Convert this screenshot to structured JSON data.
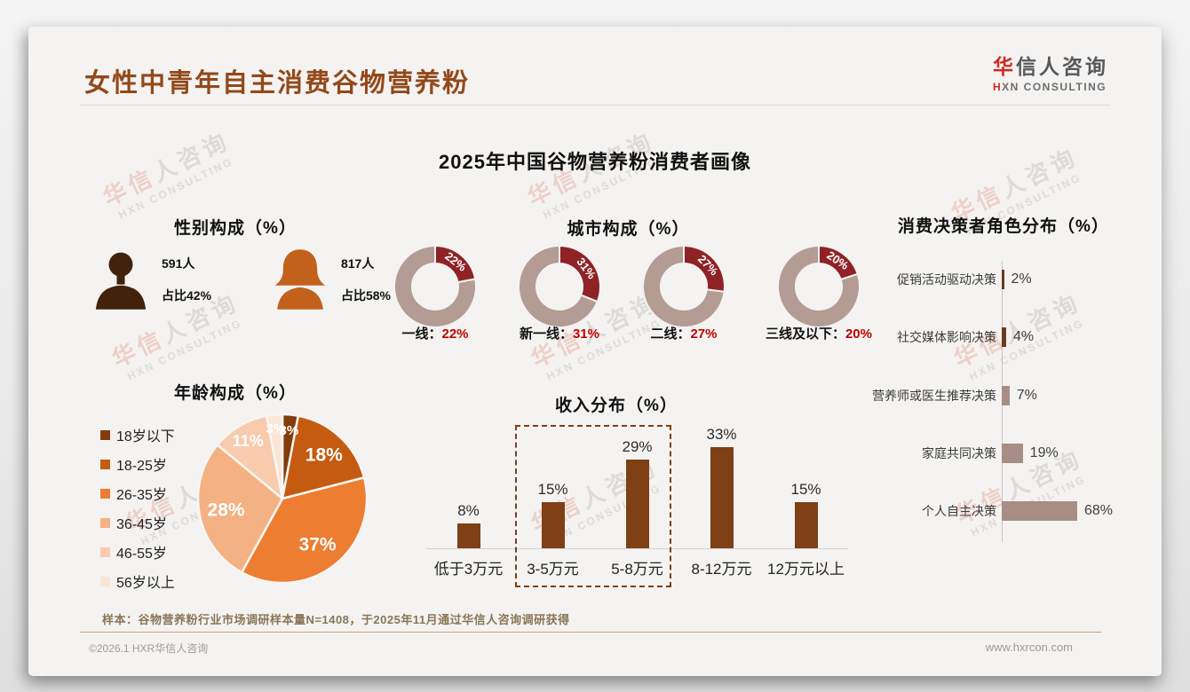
{
  "page": {
    "title": "女性中青年自主消费谷物营养粉",
    "subtitle": "2025年中国谷物营养粉消费者画像",
    "note": "样本：谷物营养粉行业市场调研样本量N=1408，于2025年11月通过华信人咨询调研获得",
    "footer_left": "©2026.1 HXR华信人咨询",
    "footer_right": "www.hxrcon.com"
  },
  "logo": {
    "name_red": "华",
    "name_gray": "信人咨询",
    "sub_red": "H",
    "sub_gray": "XN CONSULTING"
  },
  "watermark": {
    "line1_red": "华信",
    "line1_gray": "人咨询",
    "line2": "HXN CONSULTING"
  },
  "gender": {
    "title": "性别构成（%）",
    "male": {
      "count": "591人",
      "share": "占比42%"
    },
    "female": {
      "count": "817人",
      "share": "占比58%"
    }
  },
  "colors": {
    "title_brown": "#92491a",
    "logo_red": "#ce2b24",
    "value_red": "#c00000",
    "male_icon": "#42220c",
    "female_icon": "#c2611c",
    "donut_slice": "#8e2226",
    "donut_rest": "#b49b94",
    "income_bar": "#7e4014",
    "decision_dark": "#6e3a1d",
    "decision_taupe": "#a88d85"
  },
  "chart_data": [
    {
      "id": "city_donuts",
      "type": "pie",
      "variant": "donut-group",
      "title": "城市构成（%）",
      "items": [
        {
          "label": "一线",
          "value": 22
        },
        {
          "label": "新一线",
          "value": 31
        },
        {
          "label": "二线",
          "value": 27
        },
        {
          "label": "三线及以下",
          "value": 20
        }
      ],
      "slice_color": "#8e2226",
      "rest_color": "#b49b94",
      "label_color": "#ffffff",
      "value_color": "#c00000"
    },
    {
      "id": "decision_bars",
      "type": "bar",
      "orientation": "horizontal",
      "title": "消费决策者角色分布（%）",
      "categories": [
        "促销活动驱动决策",
        "社交媒体影响决策",
        "营养师或医生推荐决策",
        "家庭共同决策",
        "个人自主决策"
      ],
      "values": [
        2,
        4,
        7,
        19,
        68
      ],
      "bar_colors": [
        "#6e3a1d",
        "#6e3a1d",
        "#a88d85",
        "#a88d85",
        "#a88d85"
      ],
      "xlim": [
        0,
        80
      ],
      "grid": false
    },
    {
      "id": "age_pie",
      "type": "pie",
      "title": "年龄构成（%）",
      "categories": [
        "18岁以下",
        "18-25岁",
        "26-35岁",
        "36-45岁",
        "46-55岁",
        "56岁以上"
      ],
      "values": [
        3,
        18,
        37,
        28,
        11,
        3
      ],
      "colors": [
        "#843c0c",
        "#c55a11",
        "#ed7d31",
        "#f4b183",
        "#f8cbad",
        "#fbe5d6"
      ],
      "legend_position": "left",
      "label_color": "#ffffff"
    },
    {
      "id": "income_bars",
      "type": "bar",
      "orientation": "vertical",
      "title": "收入分布（%）",
      "categories": [
        "低于3万元",
        "3-5万元",
        "5-8万元",
        "8-12万元",
        "12万元以上"
      ],
      "values": [
        8,
        15,
        29,
        33,
        15
      ],
      "bar_color": "#7e4014",
      "highlight_box_categories": [
        "3-5万元",
        "5-8万元"
      ],
      "highlight_box_color": "#7e4014",
      "ylim": [
        0,
        35
      ],
      "grid": false
    }
  ]
}
